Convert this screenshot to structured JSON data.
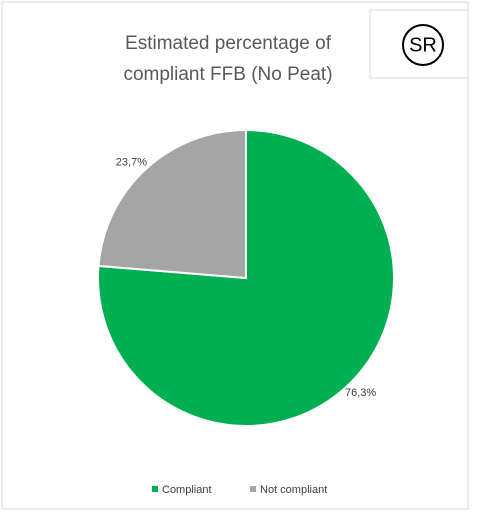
{
  "chart_data": {
    "type": "pie",
    "title": "Estimated percentage of compliant FFB (No Peat)",
    "badge": "SR",
    "categories": [
      "Compliant",
      "Not compliant"
    ],
    "values": [
      76.3,
      23.7
    ],
    "value_labels": [
      "76,3%",
      "23,7%"
    ],
    "colors": [
      "#00b050",
      "#a5a5a5"
    ],
    "legend": "bottom"
  }
}
